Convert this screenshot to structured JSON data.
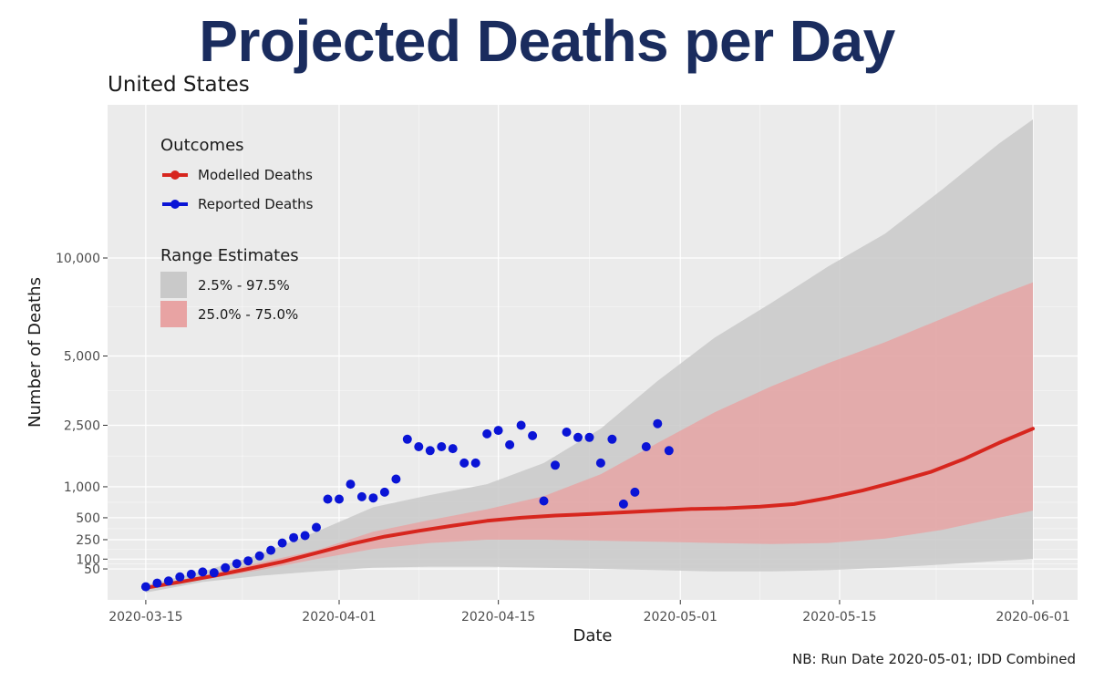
{
  "title": "Projected Deaths per Day",
  "subtitle": "United States",
  "footnote": "NB: Run Date 2020-05-01; IDD Combined",
  "colors": {
    "title": "#1a2c5e",
    "panel_bg": "#ebebeb",
    "grid": "#ffffff",
    "modelled": "#d7261e",
    "reported": "#0a14d6",
    "band_outer": "#c9c9c9",
    "band_inner": "#e8a3a3"
  },
  "chart_data": {
    "type": "line",
    "xlabel": "Date",
    "ylabel": "Number of Deaths",
    "x_ticks": [
      "2020-03-15",
      "2020-04-01",
      "2020-04-15",
      "2020-05-01",
      "2020-05-15",
      "2020-06-01"
    ],
    "y_ticks": [
      {
        "value": 50,
        "label": "50"
      },
      {
        "value": 100,
        "label": "100"
      },
      {
        "value": 250,
        "label": "250"
      },
      {
        "value": 500,
        "label": "500"
      },
      {
        "value": 1000,
        "label": "1,000"
      },
      {
        "value": 2500,
        "label": "2,500"
      },
      {
        "value": 5000,
        "label": "5,000"
      },
      {
        "value": 10000,
        "label": "10,000"
      }
    ],
    "y_scale": "sqrt",
    "xlim": [
      "2020-03-11",
      "2020-06-01"
    ],
    "ylim": [
      0,
      20000
    ],
    "grid": true,
    "legend": {
      "position": "top-left",
      "outcomes_title": "Outcomes",
      "outcomes": [
        {
          "label": "Modelled Deaths",
          "key": "modelled"
        },
        {
          "label": "Reported Deaths",
          "key": "reported"
        }
      ],
      "range_title": "Range Estimates",
      "ranges": [
        {
          "label": "2.5% - 97.5%",
          "key": "band_outer"
        },
        {
          "label": "25.0% - 75.0%",
          "key": "band_inner"
        }
      ]
    },
    "series": [
      {
        "name": "Modelled Deaths",
        "kind": "line",
        "points": [
          [
            "2020-03-15",
            2
          ],
          [
            "2020-03-18",
            10
          ],
          [
            "2020-03-21",
            25
          ],
          [
            "2020-03-24",
            50
          ],
          [
            "2020-03-27",
            85
          ],
          [
            "2020-03-30",
            140
          ],
          [
            "2020-04-02",
            210
          ],
          [
            "2020-04-05",
            280
          ],
          [
            "2020-04-08",
            340
          ],
          [
            "2020-04-11",
            400
          ],
          [
            "2020-04-14",
            460
          ],
          [
            "2020-04-17",
            500
          ],
          [
            "2020-04-20",
            530
          ],
          [
            "2020-04-23",
            550
          ],
          [
            "2020-04-26",
            575
          ],
          [
            "2020-04-29",
            600
          ],
          [
            "2020-05-02",
            625
          ],
          [
            "2020-05-05",
            635
          ],
          [
            "2020-05-08",
            660
          ],
          [
            "2020-05-11",
            700
          ],
          [
            "2020-05-14",
            800
          ],
          [
            "2020-05-17",
            930
          ],
          [
            "2020-05-20",
            1100
          ],
          [
            "2020-05-23",
            1300
          ],
          [
            "2020-05-26",
            1600
          ],
          [
            "2020-05-29",
            2000
          ],
          [
            "2020-06-01",
            2400
          ]
        ]
      },
      {
        "name": "Reported Deaths",
        "kind": "points",
        "points": [
          [
            "2020-03-15",
            3
          ],
          [
            "2020-03-16",
            8
          ],
          [
            "2020-03-17",
            12
          ],
          [
            "2020-03-18",
            22
          ],
          [
            "2020-03-19",
            30
          ],
          [
            "2020-03-20",
            38
          ],
          [
            "2020-03-21",
            35
          ],
          [
            "2020-03-22",
            55
          ],
          [
            "2020-03-23",
            75
          ],
          [
            "2020-03-24",
            90
          ],
          [
            "2020-03-25",
            120
          ],
          [
            "2020-03-26",
            160
          ],
          [
            "2020-03-27",
            220
          ],
          [
            "2020-03-28",
            270
          ],
          [
            "2020-03-29",
            290
          ],
          [
            "2020-03-30",
            380
          ],
          [
            "2020-03-31",
            780
          ],
          [
            "2020-04-01",
            780
          ],
          [
            "2020-04-02",
            1050
          ],
          [
            "2020-04-03",
            820
          ],
          [
            "2020-04-04",
            800
          ],
          [
            "2020-04-05",
            900
          ],
          [
            "2020-04-06",
            1150
          ],
          [
            "2020-04-07",
            2100
          ],
          [
            "2020-04-08",
            1900
          ],
          [
            "2020-04-09",
            1800
          ],
          [
            "2020-04-10",
            1900
          ],
          [
            "2020-04-11",
            1850
          ],
          [
            "2020-04-12",
            1500
          ],
          [
            "2020-04-13",
            1500
          ],
          [
            "2020-04-14",
            2250
          ],
          [
            "2020-04-15",
            2350
          ],
          [
            "2020-04-16",
            1950
          ],
          [
            "2020-04-17",
            2500
          ],
          [
            "2020-04-18",
            2200
          ],
          [
            "2020-04-19",
            750
          ],
          [
            "2020-04-20",
            1450
          ],
          [
            "2020-04-21",
            2300
          ],
          [
            "2020-04-22",
            2150
          ],
          [
            "2020-04-23",
            2150
          ],
          [
            "2020-04-24",
            1500
          ],
          [
            "2020-04-25",
            2100
          ],
          [
            "2020-04-26",
            700
          ],
          [
            "2020-04-27",
            900
          ],
          [
            "2020-04-28",
            1900
          ],
          [
            "2020-04-29",
            2550
          ],
          [
            "2020-04-30",
            1800
          ]
        ]
      }
    ],
    "bands": [
      {
        "name": "2.5% - 97.5%",
        "x": [
          "2020-03-15",
          "2020-03-20",
          "2020-03-25",
          "2020-03-30",
          "2020-04-04",
          "2020-04-09",
          "2020-04-14",
          "2020-04-19",
          "2020-04-24",
          "2020-04-29",
          "2020-05-04",
          "2020-05-09",
          "2020-05-14",
          "2020-05-19",
          "2020-05-24",
          "2020-05-29",
          "2020-06-01"
        ],
        "lower": [
          0,
          10,
          25,
          40,
          55,
          60,
          60,
          55,
          50,
          45,
          40,
          40,
          45,
          55,
          70,
          90,
          100
        ],
        "upper": [
          5,
          40,
          130,
          330,
          650,
          850,
          1050,
          1500,
          2400,
          4000,
          5800,
          7500,
          9500,
          11500,
          14500,
          18000,
          20000
        ]
      },
      {
        "name": "25.0% - 75.0%",
        "x": [
          "2020-03-15",
          "2020-03-20",
          "2020-03-25",
          "2020-03-30",
          "2020-04-04",
          "2020-04-09",
          "2020-04-14",
          "2020-04-19",
          "2020-04-24",
          "2020-04-29",
          "2020-05-04",
          "2020-05-09",
          "2020-05-14",
          "2020-05-19",
          "2020-05-24",
          "2020-05-29",
          "2020-06-01"
        ],
        "lower": [
          1,
          15,
          45,
          100,
          170,
          220,
          250,
          250,
          240,
          230,
          220,
          210,
          220,
          260,
          350,
          500,
          600
        ],
        "upper": [
          3,
          25,
          80,
          160,
          330,
          470,
          620,
          830,
          1250,
          2000,
          2900,
          3800,
          4700,
          5600,
          6700,
          7900,
          8600
        ]
      }
    ]
  }
}
